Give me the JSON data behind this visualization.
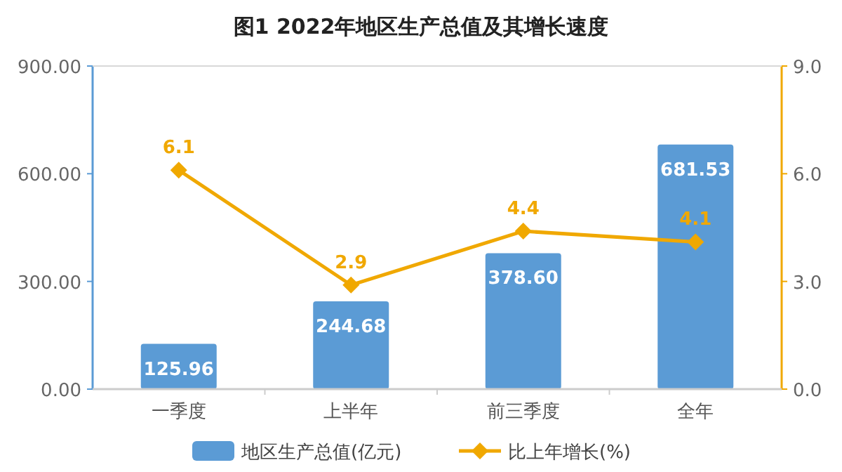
{
  "chart_data": {
    "type": "bar",
    "title": "图1  2022年地区生产总值及其增长速度",
    "categories": [
      "一季度",
      "上半年",
      "前三季度",
      "全年"
    ],
    "series": [
      {
        "name": "地区生产总值(亿元)",
        "color": "#5b9bd5",
        "values": [
          125.96,
          244.68,
          378.6,
          681.53
        ],
        "value_labels": [
          "125.96",
          "244.68",
          "378.60",
          "681.53"
        ]
      },
      {
        "name": "比上年增长(%)",
        "type": "line",
        "axis": "y2",
        "color": "#f0a800",
        "marker": "diamond",
        "values": [
          6.1,
          2.9,
          4.4,
          4.1
        ],
        "value_labels": [
          "6.1",
          "2.9",
          "4.4",
          "4.1"
        ]
      }
    ],
    "ylim": [
      0,
      900
    ],
    "yticks": [
      {
        "value": 0,
        "label": "0.00"
      },
      {
        "value": 300,
        "label": "300.00"
      },
      {
        "value": 600,
        "label": "600.00"
      },
      {
        "value": 900,
        "label": "900.00"
      }
    ],
    "y2lim": [
      0,
      9
    ],
    "y2ticks": [
      {
        "value": 0,
        "label": "0.0"
      },
      {
        "value": 3,
        "label": "3.0"
      },
      {
        "value": 6,
        "label": "6.0"
      },
      {
        "value": 9,
        "label": "9.0"
      }
    ],
    "grid": false,
    "legend": "bottom"
  }
}
